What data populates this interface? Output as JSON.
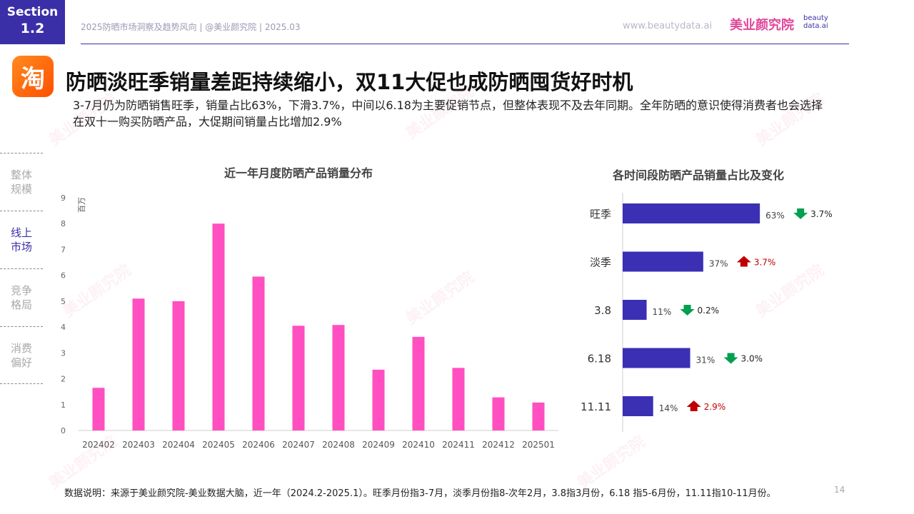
{
  "header": {
    "section_label": "Section",
    "section_number": "1.2",
    "meta": "2025防晒市场洞察及趋势风向 | @美业颜究院 | 2025.03",
    "url": "www.beautydata.ai",
    "brand": "美业颜究院",
    "brand_sub_1": "beauty",
    "brand_sub_2": "data.ai"
  },
  "app_icon": {
    "glyph": "淘",
    "icon": "taobao-icon",
    "color": "#ff5000"
  },
  "title": "防晒淡旺季销量差距持续缩小，双11大促也成防晒囤货好时机",
  "subtitle": "3-7月仍为防晒销售旺季，销量占比63%，下滑3.7%，中间以6.18为主要促销节点，但整体表现不及去年同期。全年防晒的意识使得消费者也会选择在双十一购买防晒产品，大促期间销量占比增加2.9%",
  "nav": [
    {
      "label": "整体规模",
      "active": false
    },
    {
      "label": "线上市场",
      "active": true
    },
    {
      "label": "竞争格局",
      "active": false
    },
    {
      "label": "消费偏好",
      "active": false
    }
  ],
  "chart_data": [
    {
      "type": "bar",
      "title": "近一年月度防晒产品销量分布",
      "ylabel": "百万",
      "ylim": [
        0,
        9
      ],
      "yticks": [
        0,
        1,
        2,
        3,
        4,
        5,
        6,
        7,
        8,
        9
      ],
      "categories": [
        "202402",
        "202403",
        "202404",
        "202405",
        "202406",
        "202407",
        "202408",
        "202409",
        "202410",
        "202411",
        "202412",
        "202501"
      ],
      "values": [
        1.65,
        5.1,
        5.0,
        8.0,
        5.95,
        4.05,
        4.08,
        2.35,
        3.62,
        2.42,
        1.28,
        1.08
      ],
      "color": "#ff4fc0"
    },
    {
      "type": "bar",
      "orientation": "horizontal",
      "title": "各时间段防晒产品销量占比及变化",
      "categories": [
        "旺季",
        "淡季",
        "3.8",
        "6.18",
        "11.11"
      ],
      "values": [
        63,
        37,
        11,
        31,
        14
      ],
      "value_labels": [
        "63%",
        "37%",
        "11%",
        "31%",
        "14%"
      ],
      "changes": [
        {
          "direction": "down",
          "label": "3.7%"
        },
        {
          "direction": "up",
          "label": "3.7%"
        },
        {
          "direction": "down",
          "label": "0.2%"
        },
        {
          "direction": "down",
          "label": "3.0%"
        },
        {
          "direction": "up",
          "label": "2.9%"
        }
      ],
      "color": "#3b2fb4",
      "up_color": "#c00000",
      "down_color": "#00a050"
    }
  ],
  "footnote": "数据说明：来源于美业颜究院-美业数据大脑，近一年（2024.2-2025.1）。旺季月份指3-7月，淡季月份指8-次年2月，3.8指3月份，6.18 指5-6月份，11.11指10-11月份。",
  "page_number": "14",
  "colors": {
    "accent": "#3b2fa8",
    "brand_pink": "#e0469a"
  }
}
